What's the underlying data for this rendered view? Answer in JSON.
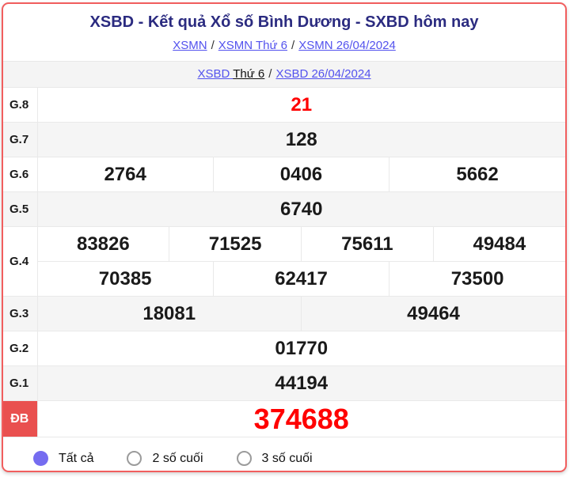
{
  "header": {
    "title": "XSBD - Kết quả Xổ số Bình Dương - SXBD hôm nay",
    "breadcrumb": {
      "separator": "/",
      "items": [
        "XSMN",
        "XSMN Thứ 6",
        "XSMN 26/04/2024"
      ]
    },
    "sub_breadcrumb": {
      "link1_highlight": "XSBD",
      "link1_rest": "Thứ 6",
      "separator": "/",
      "link2": "XSBD 26/04/2024"
    }
  },
  "results": {
    "rows": [
      {
        "label": "G.8",
        "values": [
          "21"
        ]
      },
      {
        "label": "G.7",
        "values": [
          "128"
        ]
      },
      {
        "label": "G.6",
        "values": [
          "2764",
          "0406",
          "5662"
        ]
      },
      {
        "label": "G.5",
        "values": [
          "6740"
        ]
      },
      {
        "label": "G.4",
        "line1": [
          "83826",
          "71525",
          "75611",
          "49484"
        ],
        "line2": [
          "70385",
          "62417",
          "73500"
        ]
      },
      {
        "label": "G.3",
        "values": [
          "18081",
          "49464"
        ]
      },
      {
        "label": "G.2",
        "values": [
          "01770"
        ]
      },
      {
        "label": "G.1",
        "values": [
          "44194"
        ]
      },
      {
        "label": "ĐB",
        "values": [
          "374688"
        ]
      }
    ]
  },
  "filter": {
    "options": [
      {
        "label": "Tất cả",
        "selected": true
      },
      {
        "label": "2 số cuối",
        "selected": false
      },
      {
        "label": "3 số cuối",
        "selected": false
      }
    ]
  },
  "colors": {
    "card_border": "#f15e5e",
    "title": "#2b2b80",
    "link": "#5352ee",
    "highlight_number": "#ff0000",
    "special_label_bg": "#e9504f",
    "row_alt_bg": "#f5f5f5",
    "radio_selected": "#756cf0"
  }
}
